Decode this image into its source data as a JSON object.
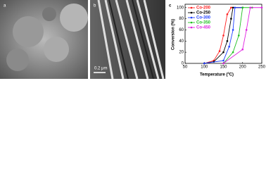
{
  "panels": {
    "a": "a",
    "b": "b",
    "scale_bar": "0.2 μm"
  },
  "chart_data": {
    "type": "line",
    "panel_label": "c",
    "xlabel": "Temperature (ºC)",
    "ylabel": "Conversion (%)",
    "xlim": [
      50,
      250
    ],
    "ylim": [
      0,
      106
    ],
    "xticks": [
      50,
      100,
      150,
      200,
      250
    ],
    "yticks": [
      0,
      20,
      40,
      60,
      80,
      100
    ],
    "legend": "upper left",
    "series": [
      {
        "name": "Co-200",
        "color": "#ff2020",
        "x": [
          100,
          125,
          140,
          150,
          160,
          170,
          200
        ],
        "values": [
          0,
          5,
          22,
          50,
          88,
          100,
          100
        ]
      },
      {
        "name": "Co-250",
        "color": "#000000",
        "x": [
          100,
          125,
          150,
          160,
          170,
          175,
          200
        ],
        "values": [
          0,
          3,
          20,
          40,
          80,
          100,
          100
        ]
      },
      {
        "name": "Co-300",
        "color": "#2040ff",
        "x": [
          100,
          150,
          165,
          175,
          180,
          200
        ],
        "values": [
          0,
          5,
          30,
          60,
          100,
          100
        ]
      },
      {
        "name": "Co-350",
        "color": "#20c020",
        "x": [
          150,
          175,
          190,
          200,
          225
        ],
        "values": [
          0,
          20,
          50,
          100,
          100
        ]
      },
      {
        "name": "Co-450",
        "color": "#e020e0",
        "x": [
          150,
          200,
          210,
          220,
          250
        ],
        "values": [
          0,
          25,
          60,
          100,
          100
        ]
      }
    ]
  }
}
